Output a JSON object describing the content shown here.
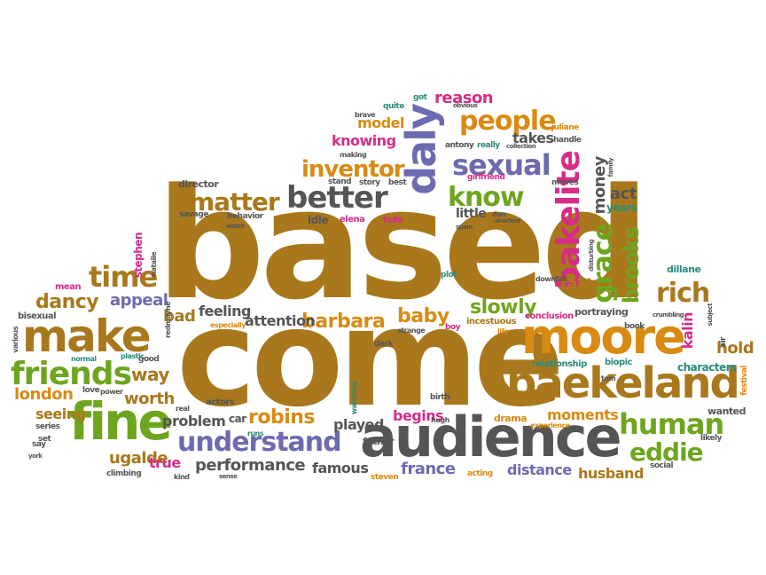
{
  "colors": {
    "brown": "#a9781c",
    "grey": "#555555",
    "orange": "#d98a12",
    "green": "#6ea51e",
    "purple": "#6c6ab0",
    "magenta": "#d62c87",
    "teal": "#2a8c7a",
    "red": "#c23a2a"
  },
  "words": [
    {
      "text": "based",
      "color": "brown"
    },
    {
      "text": "come",
      "color": "brown"
    },
    {
      "text": "audience",
      "color": "grey"
    },
    {
      "text": "baekeland",
      "color": "brown"
    },
    {
      "text": "moore",
      "color": "orange"
    },
    {
      "text": "make",
      "color": "brown"
    },
    {
      "text": "fine",
      "color": "green"
    },
    {
      "text": "friends",
      "color": "green"
    },
    {
      "text": "understand",
      "color": "purple"
    },
    {
      "text": "daly",
      "color": "purple"
    },
    {
      "text": "sexual",
      "color": "purple"
    },
    {
      "text": "people",
      "color": "orange"
    },
    {
      "text": "know",
      "color": "green"
    },
    {
      "text": "better",
      "color": "grey"
    },
    {
      "text": "matter",
      "color": "brown"
    },
    {
      "text": "inventor",
      "color": "orange"
    },
    {
      "text": "time",
      "color": "brown"
    },
    {
      "text": "bakelite",
      "color": "magenta"
    },
    {
      "text": "grace",
      "color": "green"
    },
    {
      "text": "brooks",
      "color": "green"
    },
    {
      "text": "rich",
      "color": "brown"
    },
    {
      "text": "human",
      "color": "green"
    },
    {
      "text": "eddie",
      "color": "green"
    },
    {
      "text": "barbara",
      "color": "orange"
    },
    {
      "text": "baby",
      "color": "orange"
    },
    {
      "text": "slowly",
      "color": "green"
    },
    {
      "text": "robins",
      "color": "orange"
    },
    {
      "text": "performance",
      "color": "grey"
    },
    {
      "text": "attention",
      "color": "grey"
    },
    {
      "text": "knowing",
      "color": "magenta"
    },
    {
      "text": "model",
      "color": "orange"
    },
    {
      "text": "reason",
      "color": "magenta"
    },
    {
      "text": "takes",
      "color": "grey"
    },
    {
      "text": "fact",
      "color": "brown"
    },
    {
      "text": "money",
      "color": "grey"
    },
    {
      "text": "act",
      "color": "grey"
    },
    {
      "text": "years",
      "color": "teal"
    },
    {
      "text": "dancy",
      "color": "brown"
    },
    {
      "text": "appeal",
      "color": "purple"
    },
    {
      "text": "way",
      "color": "brown"
    },
    {
      "text": "bad",
      "color": "brown"
    },
    {
      "text": "feeling",
      "color": "grey"
    },
    {
      "text": "worth",
      "color": "brown"
    },
    {
      "text": "london",
      "color": "orange"
    },
    {
      "text": "problem",
      "color": "grey"
    },
    {
      "text": "seeing",
      "color": "brown"
    },
    {
      "text": "ugalde",
      "color": "brown"
    },
    {
      "text": "true",
      "color": "magenta"
    },
    {
      "text": "famous",
      "color": "grey"
    },
    {
      "text": "france",
      "color": "purple"
    },
    {
      "text": "distance",
      "color": "purple"
    },
    {
      "text": "husband",
      "color": "brown"
    },
    {
      "text": "moments",
      "color": "orange"
    },
    {
      "text": "begins",
      "color": "magenta"
    },
    {
      "text": "played",
      "color": "grey"
    },
    {
      "text": "hold",
      "color": "brown"
    },
    {
      "text": "kalin",
      "color": "magenta"
    },
    {
      "text": "director",
      "color": "grey"
    },
    {
      "text": "little",
      "color": "grey"
    },
    {
      "text": "stephen",
      "color": "magenta"
    },
    {
      "text": "drama",
      "color": "orange"
    },
    {
      "text": "characters",
      "color": "teal"
    },
    {
      "text": "dillane",
      "color": "teal"
    },
    {
      "text": "wanted",
      "color": "grey"
    },
    {
      "text": "portraying",
      "color": "grey"
    },
    {
      "text": "bisexual",
      "color": "grey"
    },
    {
      "text": "mean",
      "color": "magenta"
    },
    {
      "text": "biopic",
      "color": "teal"
    },
    {
      "text": "relationship",
      "color": "teal"
    },
    {
      "text": "conclusion",
      "color": "magenta"
    },
    {
      "text": "incestuous",
      "color": "brown"
    },
    {
      "text": "car",
      "color": "grey"
    },
    {
      "text": "father",
      "color": "grey"
    },
    {
      "text": "actors",
      "color": "grey"
    },
    {
      "text": "idle",
      "color": "grey"
    },
    {
      "text": "elena",
      "color": "magenta"
    },
    {
      "text": "tells",
      "color": "magenta"
    },
    {
      "text": "savage",
      "color": "grey"
    },
    {
      "text": "behavior",
      "color": "grey"
    },
    {
      "text": "story",
      "color": "grey"
    },
    {
      "text": "best",
      "color": "grey"
    },
    {
      "text": "antony",
      "color": "grey"
    },
    {
      "text": "really",
      "color": "teal"
    },
    {
      "text": "quite",
      "color": "teal"
    },
    {
      "text": "got",
      "color": "teal"
    },
    {
      "text": "stand",
      "color": "grey"
    },
    {
      "text": "handle",
      "color": "grey"
    },
    {
      "text": "juliane",
      "color": "orange"
    },
    {
      "text": "girlfriend",
      "color": "magenta"
    },
    {
      "text": "moves",
      "color": "grey"
    },
    {
      "text": "book",
      "color": "grey"
    },
    {
      "text": "social",
      "color": "grey"
    },
    {
      "text": "likely",
      "color": "grey"
    },
    {
      "text": "series",
      "color": "grey"
    },
    {
      "text": "set",
      "color": "grey"
    },
    {
      "text": "climbing",
      "color": "grey"
    },
    {
      "text": "steven",
      "color": "orange"
    },
    {
      "text": "acting",
      "color": "orange"
    },
    {
      "text": "birth",
      "color": "grey"
    },
    {
      "text": "plot",
      "color": "teal"
    },
    {
      "text": "boy",
      "color": "magenta"
    },
    {
      "text": "dark",
      "color": "grey"
    },
    {
      "text": "good",
      "color": "grey"
    },
    {
      "text": "love",
      "color": "grey"
    },
    {
      "text": "say",
      "color": "grey"
    },
    {
      "text": "air",
      "color": "grey"
    },
    {
      "text": "festival",
      "color": "orange"
    },
    {
      "text": "tom",
      "color": "grey"
    },
    {
      "text": "brave",
      "color": "grey"
    },
    {
      "text": "making",
      "color": "grey"
    },
    {
      "text": "downfall",
      "color": "grey"
    },
    {
      "text": "strange",
      "color": "grey"
    },
    {
      "text": "watching",
      "color": "teal"
    },
    {
      "text": "especially",
      "color": "orange"
    },
    {
      "text": "natalie",
      "color": "grey"
    },
    {
      "text": "various",
      "color": "grey"
    },
    {
      "text": "normal",
      "color": "teal"
    },
    {
      "text": "redmayne",
      "color": "grey"
    },
    {
      "text": "plastic",
      "color": "teal"
    },
    {
      "text": "power",
      "color": "grey"
    },
    {
      "text": "real",
      "color": "grey"
    },
    {
      "text": "kind",
      "color": "grey"
    },
    {
      "text": "hugh",
      "color": "grey"
    },
    {
      "text": "runs",
      "color": "teal"
    },
    {
      "text": "life",
      "color": "orange"
    },
    {
      "text": "experience",
      "color": "orange"
    },
    {
      "text": "don",
      "color": "grey"
    },
    {
      "text": "obvious",
      "color": "grey"
    },
    {
      "text": "collection",
      "color": "grey"
    },
    {
      "text": "family",
      "color": "grey"
    },
    {
      "text": "crumbling",
      "color": "grey"
    },
    {
      "text": "subject",
      "color": "grey"
    },
    {
      "text": "disturbing",
      "color": "grey"
    },
    {
      "text": "shocked",
      "color": "grey"
    },
    {
      "text": "spain",
      "color": "grey"
    },
    {
      "text": "watch",
      "color": "grey"
    },
    {
      "text": "york",
      "color": "grey"
    },
    {
      "text": "sense",
      "color": "grey"
    }
  ]
}
